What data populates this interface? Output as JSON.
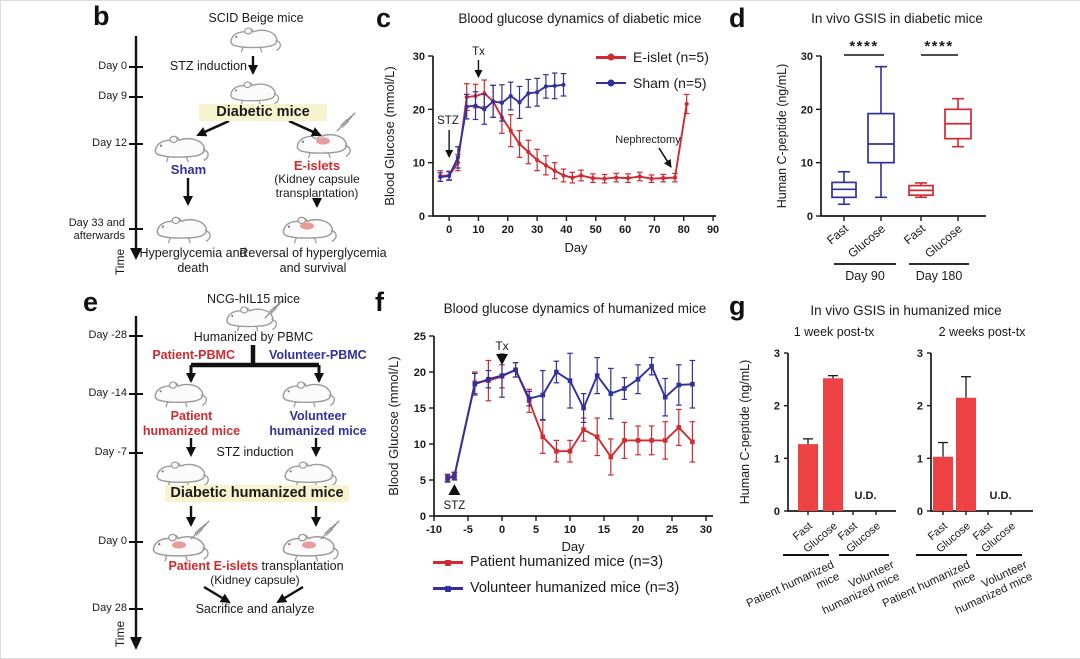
{
  "colors": {
    "red": "#cf2b31",
    "blue": "#31319c",
    "bar_red": "#ee4143",
    "highlight_yellow": "#f9f2cf",
    "axis": "#1a1a1a",
    "mouse_gray": "#9b9b9b"
  },
  "panel_b": {
    "letter": "b",
    "time_axis": {
      "ticks": [
        {
          "label": "Day 0"
        },
        {
          "label": "Day 9"
        },
        {
          "label": "Day 12"
        },
        {
          "label": "Day 33 and afterwards"
        }
      ],
      "axis_label": "Time"
    },
    "flow": {
      "start": "SCID Beige mice",
      "induction": "STZ induction",
      "diabetic": "Diabetic mice",
      "left_branch": "Sham",
      "right_branch": "E-islets",
      "right_branch_note": "(Kidney capsule transplantation)",
      "left_outcome": "Hyperglycemia and death",
      "right_outcome": "Reversal of hyperglycemia and survival"
    }
  },
  "panel_e": {
    "letter": "e",
    "time_axis": {
      "ticks": [
        {
          "label": "Day -28"
        },
        {
          "label": "Day -14"
        },
        {
          "label": "Day -7"
        },
        {
          "label": "Day 0"
        },
        {
          "label": "Day 28"
        }
      ],
      "axis_label": "Time"
    },
    "flow": {
      "start": "NCG-hIL15 mice",
      "humanized": "Humanized by PBMC",
      "left_branch": "Patient-PBMC",
      "right_branch": "Volunteer-PBMC",
      "left_mouse": "Patient humanized mice",
      "right_mouse": "Volunteer humanized mice",
      "induction": "STZ induction",
      "diabetic": "Diabetic humanized mice",
      "transplant_red": "Patient E-islets",
      "transplant_rest": " transplantation",
      "transplant_note": "(Kidney capsule)",
      "outcome": "Sacrifice and analyze"
    }
  },
  "chart_data": [
    {
      "letter": "c",
      "type": "line",
      "title": "Blood glucose dynamics of diabetic mice",
      "xlabel": "Day",
      "ylabel": "Blood Glucose (mmol/L)",
      "xlim": [
        -5.5,
        91
      ],
      "ylim": [
        0,
        30
      ],
      "xticks": [
        0,
        10,
        20,
        30,
        40,
        50,
        60,
        70,
        80,
        90
      ],
      "yticks": [
        0,
        10,
        20,
        30
      ],
      "legend_position": "top-right",
      "series": [
        {
          "name": "E-islet (n=5)",
          "color": "red",
          "x": [
            -3,
            0,
            3,
            6,
            9,
            12,
            15,
            18,
            21,
            24,
            27,
            30,
            33,
            36,
            39,
            42,
            45,
            49,
            53,
            57,
            61,
            65,
            69,
            73,
            77,
            81
          ],
          "y": [
            7.5,
            7.6,
            10,
            22.3,
            22.5,
            23,
            21.5,
            18.5,
            16,
            13.5,
            12,
            10.5,
            9.5,
            8.5,
            7.6,
            7.2,
            7.6,
            7.1,
            7.0,
            7.2,
            7.1,
            7.4,
            7.0,
            7.1,
            7.2,
            21
          ],
          "err": [
            1,
            0.8,
            1.5,
            2.5,
            2.2,
            2.5,
            3,
            3,
            3,
            2.5,
            2.2,
            2,
            1.8,
            1.5,
            1.2,
            1,
            1,
            0.8,
            0.8,
            0.8,
            0.8,
            0.8,
            0.7,
            0.7,
            0.8,
            1.8
          ]
        },
        {
          "name": "Sham (n=5)",
          "color": "blue",
          "x": [
            -3,
            0,
            3,
            6,
            9,
            12,
            15,
            18,
            21,
            24,
            27,
            30,
            33,
            36,
            39
          ],
          "y": [
            7.3,
            7.5,
            11,
            20.5,
            20.7,
            20,
            21.5,
            21.2,
            22.5,
            21.3,
            23,
            23.2,
            24.3,
            24.4,
            24.6
          ],
          "err": [
            0.8,
            0.8,
            2,
            2.3,
            2.6,
            2.8,
            3,
            3.4,
            2.6,
            3,
            2.6,
            2.6,
            2.2,
            2.4,
            2.1
          ]
        }
      ],
      "annotations": [
        {
          "text": "STZ",
          "day": 0
        },
        {
          "text": "Tx",
          "day": 10
        },
        {
          "text": "Nephrectomy",
          "day": 77
        }
      ]
    },
    {
      "letter": "d",
      "type": "box",
      "title": "In vivo GSIS in diabetic mice",
      "ylabel": "Human C-peptide (ng/mL)",
      "ylim": [
        0,
        30
      ],
      "yticks": [
        0,
        10,
        20,
        30
      ],
      "boxes": [
        {
          "label": "Fast",
          "color": "blue",
          "whislo": 2.2,
          "q1": 3.5,
          "med": 5.0,
          "q3": 6.3,
          "whishi": 8.3
        },
        {
          "label": "Glucose",
          "color": "blue",
          "whislo": 3.5,
          "q1": 10.0,
          "med": 13.5,
          "q3": 19.2,
          "whishi": 28.0
        },
        {
          "label": "Fast",
          "color": "red",
          "whislo": 3.5,
          "q1": 3.9,
          "med": 4.8,
          "q3": 5.7,
          "whishi": 6.2
        },
        {
          "label": "Glucose",
          "color": "red",
          "whislo": 13.0,
          "q1": 14.5,
          "med": 17.3,
          "q3": 20.0,
          "whishi": 22.0
        }
      ],
      "groups": [
        {
          "label": "Day 90",
          "sig": "****"
        },
        {
          "label": "Day 180",
          "sig": "****"
        }
      ]
    },
    {
      "letter": "f",
      "type": "line",
      "title": "Blood glucose dynamics of humanized mice",
      "xlabel": "Day",
      "ylabel": "Blood Glucose (mmol/L)",
      "xlim": [
        -10,
        31
      ],
      "ylim": [
        0,
        25
      ],
      "xticks": [
        -10,
        -5,
        0,
        5,
        10,
        15,
        20,
        25,
        30
      ],
      "yticks": [
        0,
        5,
        10,
        15,
        20,
        25
      ],
      "legend_position": "bottom",
      "series": [
        {
          "name": "Patient humanized mice (n=3)",
          "color": "red",
          "x": [
            -8,
            -7,
            -4,
            -2,
            0,
            2,
            4,
            6,
            8,
            10,
            12,
            14,
            16,
            18,
            20,
            22,
            24,
            26,
            28
          ],
          "y": [
            5.3,
            5.6,
            18.5,
            18.8,
            19.4,
            20.3,
            16.0,
            11.0,
            9.0,
            9.0,
            12.0,
            11.0,
            8.2,
            10.5,
            10.5,
            10.5,
            10.5,
            12.3,
            10.3
          ],
          "err": [
            0.5,
            0.5,
            1.5,
            2.8,
            1.6,
            1.0,
            1.6,
            2.3,
            1.5,
            1.5,
            1.6,
            2.6,
            2.5,
            2.5,
            2.0,
            2.0,
            2.6,
            2.5,
            2.8
          ]
        },
        {
          "name": "Volunteer humanized mice (n=3)",
          "color": "blue",
          "x": [
            -8,
            -7,
            -4,
            -2,
            0,
            2,
            4,
            6,
            8,
            10,
            12,
            14,
            16,
            18,
            20,
            22,
            24,
            26,
            28
          ],
          "y": [
            5.2,
            5.5,
            18.3,
            19.0,
            19.5,
            20.3,
            16.3,
            16.8,
            20.0,
            18.8,
            15.0,
            19.5,
            17.0,
            17.7,
            19.0,
            20.8,
            16.5,
            18.2,
            18.3
          ],
          "err": [
            0.5,
            0.5,
            1.5,
            1.2,
            3.0,
            1.0,
            1.0,
            3.4,
            1.5,
            3.8,
            2.0,
            2.5,
            3.5,
            1.5,
            2.0,
            1.2,
            2.6,
            2.8,
            3.3
          ]
        }
      ],
      "annotations": [
        {
          "text": "STZ",
          "day": -7
        },
        {
          "text": "Tx",
          "day": 0
        }
      ]
    },
    {
      "letter": "g",
      "type": "bar",
      "title": "In vivo GSIS in humanized mice",
      "ylabel": "Human C-peptide (ng/mL)",
      "ylim": [
        0,
        3
      ],
      "yticks": [
        0,
        1,
        2,
        3
      ],
      "subplots": [
        {
          "subtitle": "1 week post-tx",
          "bars": [
            {
              "label": "Fast",
              "value": 1.27,
              "err": 0.1
            },
            {
              "label": "Glucose",
              "value": 2.52,
              "err": 0.05
            },
            {
              "label": "Fast",
              "value": null
            },
            {
              "label": "Glucose",
              "value": null
            }
          ],
          "ud": "U.D."
        },
        {
          "subtitle": "2 weeks post-tx",
          "bars": [
            {
              "label": "Fast",
              "value": 1.03,
              "err": 0.27
            },
            {
              "label": "Glucose",
              "value": 2.15,
              "err": 0.4
            },
            {
              "label": "Fast",
              "value": null
            },
            {
              "label": "Glucose",
              "value": null
            }
          ],
          "ud": "U.D."
        }
      ],
      "group_labels": [
        "Patient humanized mice",
        "Volunteer humanized mice"
      ]
    }
  ]
}
